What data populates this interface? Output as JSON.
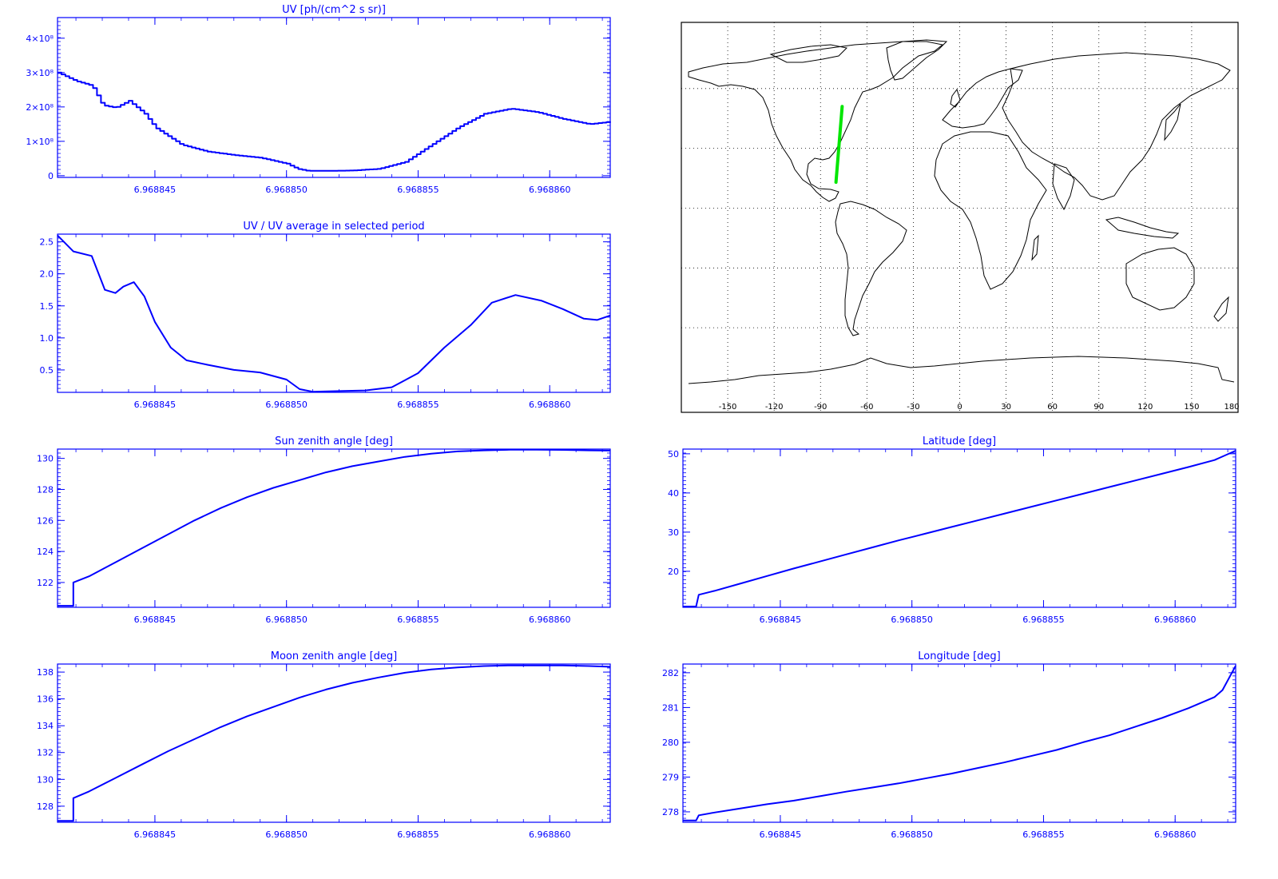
{
  "colors": {
    "plot": "#0000ff",
    "track": "#00e600",
    "map_frame": "#000000",
    "background": "#ffffff"
  },
  "chart_data": [
    {
      "id": "uv",
      "type": "line",
      "title": "UV [ph/(cm^2 s sr)]",
      "xlim": [
        6.9688413,
        6.9688623
      ],
      "ylim": [
        -5000000.0,
        460000000.0
      ],
      "xticks": [
        6.968845,
        6.96885,
        6.968855,
        6.96886
      ],
      "xtick_labels": [
        "6.968845",
        "6.968850",
        "6.968855",
        "6.968860"
      ],
      "yticks": [
        0,
        100000000.0,
        200000000.0,
        300000000.0,
        400000000.0
      ],
      "ytick_labels": [
        "0",
        "1×10⁸",
        "2×10⁸",
        "3×10⁸",
        "4×10⁸"
      ],
      "step": true,
      "x": [
        6.9688413,
        6.968842,
        6.9688426,
        6.968843,
        6.9688435,
        6.968844,
        6.9688446,
        6.968845,
        6.968846,
        6.968847,
        6.968848,
        6.968849,
        6.96885,
        6.9688504,
        6.9688508,
        6.9688515,
        6.9688525,
        6.9688535,
        6.9688545,
        6.9688555,
        6.9688565,
        6.9688575,
        6.9688585,
        6.9688595,
        6.9688605,
        6.9688615,
        6.9688623
      ],
      "y": [
        300000000.0,
        275000000.0,
        262000000.0,
        205000000.0,
        198000000.0,
        218000000.0,
        180000000.0,
        140000000.0,
        90000000.0,
        70000000.0,
        60000000.0,
        52000000.0,
        35000000.0,
        20000000.0,
        14000000.0,
        14000000.0,
        15000000.0,
        20000000.0,
        40000000.0,
        90000000.0,
        140000000.0,
        180000000.0,
        195000000.0,
        185000000.0,
        165000000.0,
        150000000.0,
        157000000.0
      ]
    },
    {
      "id": "uv_ratio",
      "type": "line",
      "title": "UV / UV average in selected period",
      "xlim": [
        6.9688413,
        6.9688623
      ],
      "ylim": [
        0.15,
        2.62
      ],
      "xticks": [
        6.968845,
        6.96885,
        6.968855,
        6.96886
      ],
      "xtick_labels": [
        "6.968845",
        "6.968850",
        "6.968855",
        "6.968860"
      ],
      "yticks": [
        0.5,
        1.0,
        1.5,
        2.0,
        2.5
      ],
      "ytick_labels": [
        "0.5",
        "1.0",
        "1.5",
        "2.0",
        "2.5"
      ],
      "step": false,
      "x": [
        6.9688413,
        6.9688419,
        6.9688426,
        6.9688431,
        6.9688435,
        6.9688438,
        6.9688442,
        6.9688446,
        6.968845,
        6.9688456,
        6.9688462,
        6.968847,
        6.968848,
        6.968849,
        6.96885,
        6.9688505,
        6.968851,
        6.968852,
        6.968853,
        6.968854,
        6.968855,
        6.968856,
        6.968857,
        6.9688578,
        6.9688587,
        6.9688597,
        6.9688605,
        6.9688613,
        6.9688618,
        6.9688623
      ],
      "y": [
        2.6,
        2.35,
        2.28,
        1.75,
        1.7,
        1.8,
        1.87,
        1.65,
        1.25,
        0.85,
        0.65,
        0.58,
        0.5,
        0.46,
        0.35,
        0.2,
        0.16,
        0.17,
        0.18,
        0.23,
        0.45,
        0.85,
        1.2,
        1.55,
        1.67,
        1.58,
        1.45,
        1.3,
        1.28,
        1.35
      ]
    },
    {
      "id": "sun_zenith",
      "type": "line",
      "title": "Sun zenith angle [deg]",
      "xlim": [
        6.9688413,
        6.9688623
      ],
      "ylim": [
        120.4,
        130.6
      ],
      "xticks": [
        6.968845,
        6.96885,
        6.968855,
        6.96886
      ],
      "xtick_labels": [
        "6.968845",
        "6.968850",
        "6.968855",
        "6.968860"
      ],
      "yticks": [
        122,
        124,
        126,
        128,
        130
      ],
      "ytick_labels": [
        "122",
        "124",
        "126",
        "128",
        "130"
      ],
      "step": false,
      "x": [
        6.9688413,
        6.9688419,
        6.9688419,
        6.9688425,
        6.9688435,
        6.9688445,
        6.9688455,
        6.9688465,
        6.9688475,
        6.9688485,
        6.9688495,
        6.9688505,
        6.9688515,
        6.9688525,
        6.9688535,
        6.9688545,
        6.9688555,
        6.9688565,
        6.9688575,
        6.9688585,
        6.9688595,
        6.9688605,
        6.9688615,
        6.9688623
      ],
      "y": [
        120.5,
        120.5,
        122.0,
        122.4,
        123.3,
        124.2,
        125.1,
        126.0,
        126.8,
        127.5,
        128.1,
        128.6,
        129.1,
        129.5,
        129.8,
        130.1,
        130.3,
        130.45,
        130.52,
        130.56,
        130.56,
        130.55,
        130.52,
        130.5
      ]
    },
    {
      "id": "moon_zenith",
      "type": "line",
      "title": "Moon zenith angle [deg]",
      "xlim": [
        6.9688413,
        6.9688623
      ],
      "ylim": [
        126.8,
        138.6
      ],
      "xticks": [
        6.968845,
        6.96885,
        6.968855,
        6.96886
      ],
      "xtick_labels": [
        "6.968845",
        "6.968850",
        "6.968855",
        "6.968860"
      ],
      "yticks": [
        128,
        130,
        132,
        134,
        136,
        138
      ],
      "ytick_labels": [
        "128",
        "130",
        "132",
        "134",
        "136",
        "138"
      ],
      "step": false,
      "x": [
        6.9688413,
        6.9688419,
        6.9688419,
        6.9688425,
        6.9688435,
        6.9688445,
        6.9688455,
        6.9688465,
        6.9688475,
        6.9688485,
        6.9688495,
        6.9688505,
        6.9688515,
        6.9688525,
        6.9688535,
        6.9688545,
        6.9688555,
        6.9688565,
        6.9688575,
        6.9688585,
        6.9688595,
        6.9688605,
        6.9688615,
        6.9688623
      ],
      "y": [
        126.9,
        126.9,
        128.6,
        129.1,
        130.1,
        131.1,
        132.1,
        133.0,
        133.9,
        134.7,
        135.4,
        136.1,
        136.7,
        137.2,
        137.6,
        137.95,
        138.2,
        138.35,
        138.45,
        138.5,
        138.5,
        138.5,
        138.45,
        138.4
      ]
    },
    {
      "id": "latitude",
      "type": "line",
      "title": "Latitude [deg]",
      "xlim": [
        6.9688413,
        6.9688623
      ],
      "ylim": [
        10.8,
        51.2
      ],
      "xticks": [
        6.968845,
        6.96885,
        6.968855,
        6.96886
      ],
      "xtick_labels": [
        "6.968845",
        "6.968850",
        "6.968855",
        "6.968860"
      ],
      "yticks": [
        20,
        30,
        40,
        50
      ],
      "ytick_labels": [
        "20",
        "30",
        "40",
        "50"
      ],
      "step": false,
      "x": [
        6.9688413,
        6.9688418,
        6.9688419,
        6.9688425,
        6.9688435,
        6.9688445,
        6.9688455,
        6.9688465,
        6.9688475,
        6.9688485,
        6.9688495,
        6.9688505,
        6.9688515,
        6.9688525,
        6.9688535,
        6.9688545,
        6.9688555,
        6.9688565,
        6.9688575,
        6.9688585,
        6.9688595,
        6.9688605,
        6.9688615,
        6.9688623
      ],
      "y": [
        11.0,
        11.0,
        14.0,
        15.0,
        16.9,
        18.8,
        20.7,
        22.5,
        24.3,
        26.1,
        27.9,
        29.6,
        31.3,
        33.0,
        34.7,
        36.4,
        38.1,
        39.8,
        41.5,
        43.2,
        44.9,
        46.6,
        48.4,
        50.8
      ]
    },
    {
      "id": "longitude",
      "type": "line",
      "title": "Longitude [deg]",
      "xlim": [
        6.9688413,
        6.9688623
      ],
      "ylim": [
        277.7,
        282.25
      ],
      "xticks": [
        6.968845,
        6.96885,
        6.968855,
        6.96886
      ],
      "xtick_labels": [
        "6.968845",
        "6.968850",
        "6.968855",
        "6.968860"
      ],
      "yticks": [
        278,
        279,
        280,
        281,
        282
      ],
      "ytick_labels": [
        "278",
        "279",
        "280",
        "281",
        "282"
      ],
      "step": false,
      "x": [
        6.9688413,
        6.9688418,
        6.9688419,
        6.9688425,
        6.9688435,
        6.9688445,
        6.9688455,
        6.9688465,
        6.9688475,
        6.9688485,
        6.9688495,
        6.9688505,
        6.9688515,
        6.9688525,
        6.9688535,
        6.9688545,
        6.9688555,
        6.9688565,
        6.9688575,
        6.9688585,
        6.9688595,
        6.9688605,
        6.9688615,
        6.9688618,
        6.9688623
      ],
      "y": [
        277.75,
        277.75,
        277.9,
        277.98,
        278.1,
        278.22,
        278.32,
        278.45,
        278.58,
        278.7,
        278.82,
        278.96,
        279.1,
        279.26,
        279.42,
        279.6,
        279.78,
        280.0,
        280.2,
        280.45,
        280.7,
        280.98,
        281.3,
        281.5,
        282.2
      ]
    }
  ],
  "map": {
    "lon_ticks": [
      "-150",
      "-120",
      "-90",
      "-60",
      "-30",
      "0",
      "30",
      "60",
      "90",
      "120",
      "150",
      "180"
    ],
    "track": {
      "lon_start": -80.0,
      "lat_start": 13.0,
      "lon_end": -76.0,
      "lat_end": 51.0
    }
  }
}
